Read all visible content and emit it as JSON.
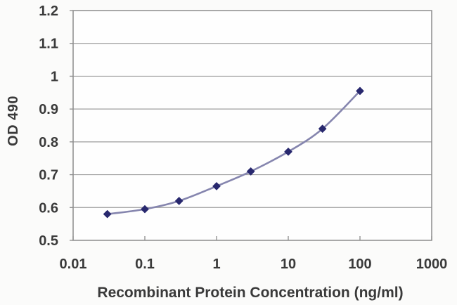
{
  "chart_data": {
    "type": "line",
    "xlabel": "Recombinant Protein Concentration (ng/ml)",
    "ylabel": "OD 490",
    "x_scale": "log",
    "xlim": [
      0.01,
      1000
    ],
    "ylim": [
      0.5,
      1.2
    ],
    "x_ticks": [
      0.01,
      0.1,
      1,
      10,
      100,
      1000
    ],
    "y_ticks": [
      0.5,
      0.6,
      0.7,
      0.8,
      0.9,
      1,
      1.1,
      1.2
    ],
    "grid": "horizontal",
    "legend": "none",
    "marker": "diamond",
    "smooth": true,
    "x": [
      0.03,
      0.1,
      0.3,
      1,
      3,
      10,
      30,
      100
    ],
    "y": [
      0.58,
      0.595,
      0.62,
      0.665,
      0.71,
      0.77,
      0.84,
      0.955
    ],
    "colors": {
      "marker": "#28286e",
      "line": "#8585ae",
      "grid": "#9e9e9e",
      "axis": "#8c8c8c",
      "text": "#3a3a3a",
      "background": "#fbfbfa",
      "plot_background": "#fefefe"
    }
  }
}
